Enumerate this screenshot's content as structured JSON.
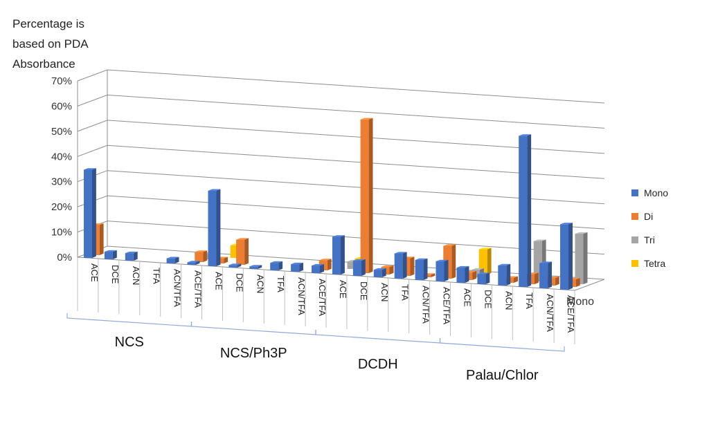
{
  "chart_data": {
    "type": "bar",
    "ylabel": [
      "Percentage is",
      "based on PDA",
      "Absorbance"
    ],
    "yticks": [
      "0%",
      "10%",
      "20%",
      "30%",
      "40%",
      "50%",
      "60%",
      "70%"
    ],
    "ylim": [
      0,
      70
    ],
    "depth_axis_label": "Mono",
    "groups": [
      {
        "name": "NCS",
        "categories": [
          "ACE",
          "DCE",
          "ACN",
          "TFA",
          "ACN/TFA",
          "ACE/TFA"
        ]
      },
      {
        "name": "NCS/Ph3P",
        "categories": [
          "ACE",
          "DCE",
          "ACN",
          "TFA",
          "ACN/TFA",
          "ACE/TFA"
        ]
      },
      {
        "name": "DCDH",
        "categories": [
          "ACE",
          "DCE",
          "ACN",
          "TFA",
          "ACN/TFA",
          "ACE/TFA"
        ]
      },
      {
        "name": "Palau/Chlor",
        "categories": [
          "ACE",
          "DCE",
          "ACN",
          "TFA",
          "ACN/TFA",
          "ACE/TFA"
        ]
      }
    ],
    "series": [
      {
        "name": "Mono",
        "color": "#4472C4",
        "values": [
          35,
          3,
          3,
          0,
          2,
          1,
          30,
          1,
          1,
          3,
          3,
          3,
          15,
          6,
          3,
          10,
          8,
          8,
          6,
          4,
          8,
          60,
          10,
          26
        ]
      },
      {
        "name": "Di",
        "color": "#ED7D31",
        "values": [
          12,
          0,
          0,
          0,
          0,
          4,
          2,
          10,
          0,
          0,
          0,
          4,
          0,
          61,
          3,
          7,
          1,
          13,
          3,
          0,
          2,
          4,
          3,
          3
        ]
      },
      {
        "name": "Tri",
        "color": "#A5A5A5",
        "values": [
          0,
          0,
          0,
          0,
          0,
          2,
          0,
          0,
          0,
          0,
          0,
          0,
          3,
          0,
          0,
          0,
          0,
          0,
          3,
          0,
          0,
          16,
          0,
          20
        ]
      },
      {
        "name": "Tetra",
        "color": "#FFC000",
        "values": [
          0,
          0,
          0,
          0,
          0,
          0,
          5,
          0,
          0,
          0,
          0,
          0,
          3,
          0,
          0,
          0,
          0,
          0,
          10,
          0,
          0,
          0,
          0,
          0
        ]
      }
    ]
  }
}
